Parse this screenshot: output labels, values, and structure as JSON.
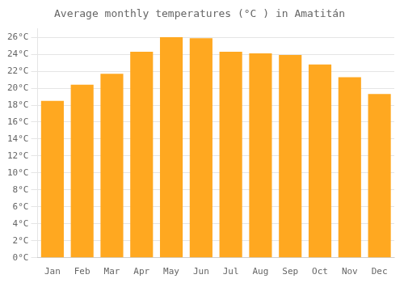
{
  "chart_data": {
    "type": "bar",
    "title": "Average monthly temperatures (°C ) in Amatitán",
    "categories": [
      "Jan",
      "Feb",
      "Mar",
      "Apr",
      "May",
      "Jun",
      "Jul",
      "Aug",
      "Sep",
      "Oct",
      "Nov",
      "Dec"
    ],
    "values": [
      18.5,
      20.4,
      21.7,
      24.3,
      26.0,
      25.9,
      24.3,
      24.1,
      23.9,
      22.8,
      21.3,
      19.3
    ],
    "color": "#FFA820",
    "ylim": [
      0,
      27
    ],
    "yticks": [
      {
        "value": 0,
        "label": "0°C"
      },
      {
        "value": 2,
        "label": "2°C"
      },
      {
        "value": 4,
        "label": "4°C"
      },
      {
        "value": 6,
        "label": "6°C"
      },
      {
        "value": 8,
        "label": "8°C"
      },
      {
        "value": 10,
        "label": "10°C"
      },
      {
        "value": 12,
        "label": "12°C"
      },
      {
        "value": 14,
        "label": "14°C"
      },
      {
        "value": 16,
        "label": "16°C"
      },
      {
        "value": 18,
        "label": "18°C"
      },
      {
        "value": 20,
        "label": "20°C"
      },
      {
        "value": 22,
        "label": "22°C"
      },
      {
        "value": 24,
        "label": "24°C"
      },
      {
        "value": 26,
        "label": "26°C"
      }
    ],
    "grid": true
  }
}
